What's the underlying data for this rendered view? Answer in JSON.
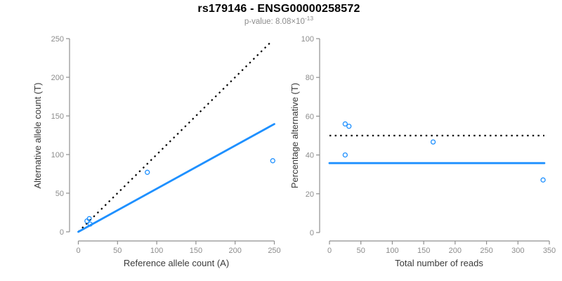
{
  "header": {
    "title": "rs179146 - ENSG00000258572",
    "subtitle_prefix": "p-value: 8.08×10",
    "subtitle_exponent": "-13"
  },
  "colors": {
    "point": "#1E90FF",
    "fit_line": "#1E90FF",
    "reference_line": "#000000",
    "axis": "#8f8f8f",
    "tick_label": "#8c8c8c",
    "axis_label": "#3a3a3a",
    "subtitle": "#8c8c8c",
    "title": "#000000"
  },
  "chart_data": [
    {
      "type": "scatter",
      "panel": "left",
      "xlabel": "Reference allele count (A)",
      "ylabel": "Alternative allele count (T)",
      "xlim": [
        0,
        250
      ],
      "ylim": [
        0,
        250
      ],
      "xticks": [
        0,
        50,
        100,
        150,
        200,
        250
      ],
      "yticks": [
        0,
        50,
        100,
        150,
        200,
        250
      ],
      "grid": false,
      "legend": false,
      "points": [
        [
          11,
          14
        ],
        [
          14,
          17
        ],
        [
          15,
          10
        ],
        [
          88,
          77
        ],
        [
          248,
          92
        ]
      ],
      "lines": [
        {
          "name": "identity-expected-1to1",
          "style": "dotted",
          "color": "#000000",
          "x": [
            0,
            247
          ],
          "y": [
            0,
            247
          ]
        },
        {
          "name": "fitted-allelic-ratio",
          "style": "solid",
          "color": "#1E90FF",
          "x": [
            0,
            250
          ],
          "y": [
            0,
            139.5
          ]
        }
      ]
    },
    {
      "type": "scatter",
      "panel": "right",
      "xlabel": "Total number of reads",
      "ylabel": "Percentage alternative (T)",
      "xlim": [
        0,
        350
      ],
      "ylim": [
        0,
        100
      ],
      "xticks": [
        0,
        50,
        100,
        150,
        200,
        250,
        300,
        350
      ],
      "yticks": [
        0,
        20,
        40,
        60,
        80,
        100
      ],
      "grid": false,
      "legend": false,
      "points": [
        [
          25,
          56
        ],
        [
          31,
          54.8
        ],
        [
          25,
          40
        ],
        [
          165,
          46.7
        ],
        [
          340,
          27.1
        ]
      ],
      "lines": [
        {
          "name": "null-50-percent",
          "style": "dotted",
          "color": "#000000",
          "x": [
            0,
            342
          ],
          "y": [
            50,
            50
          ]
        },
        {
          "name": "fitted-mean-percentage",
          "style": "solid",
          "color": "#1E90FF",
          "x": [
            0,
            342
          ],
          "y": [
            35.8,
            35.8
          ]
        }
      ]
    }
  ]
}
